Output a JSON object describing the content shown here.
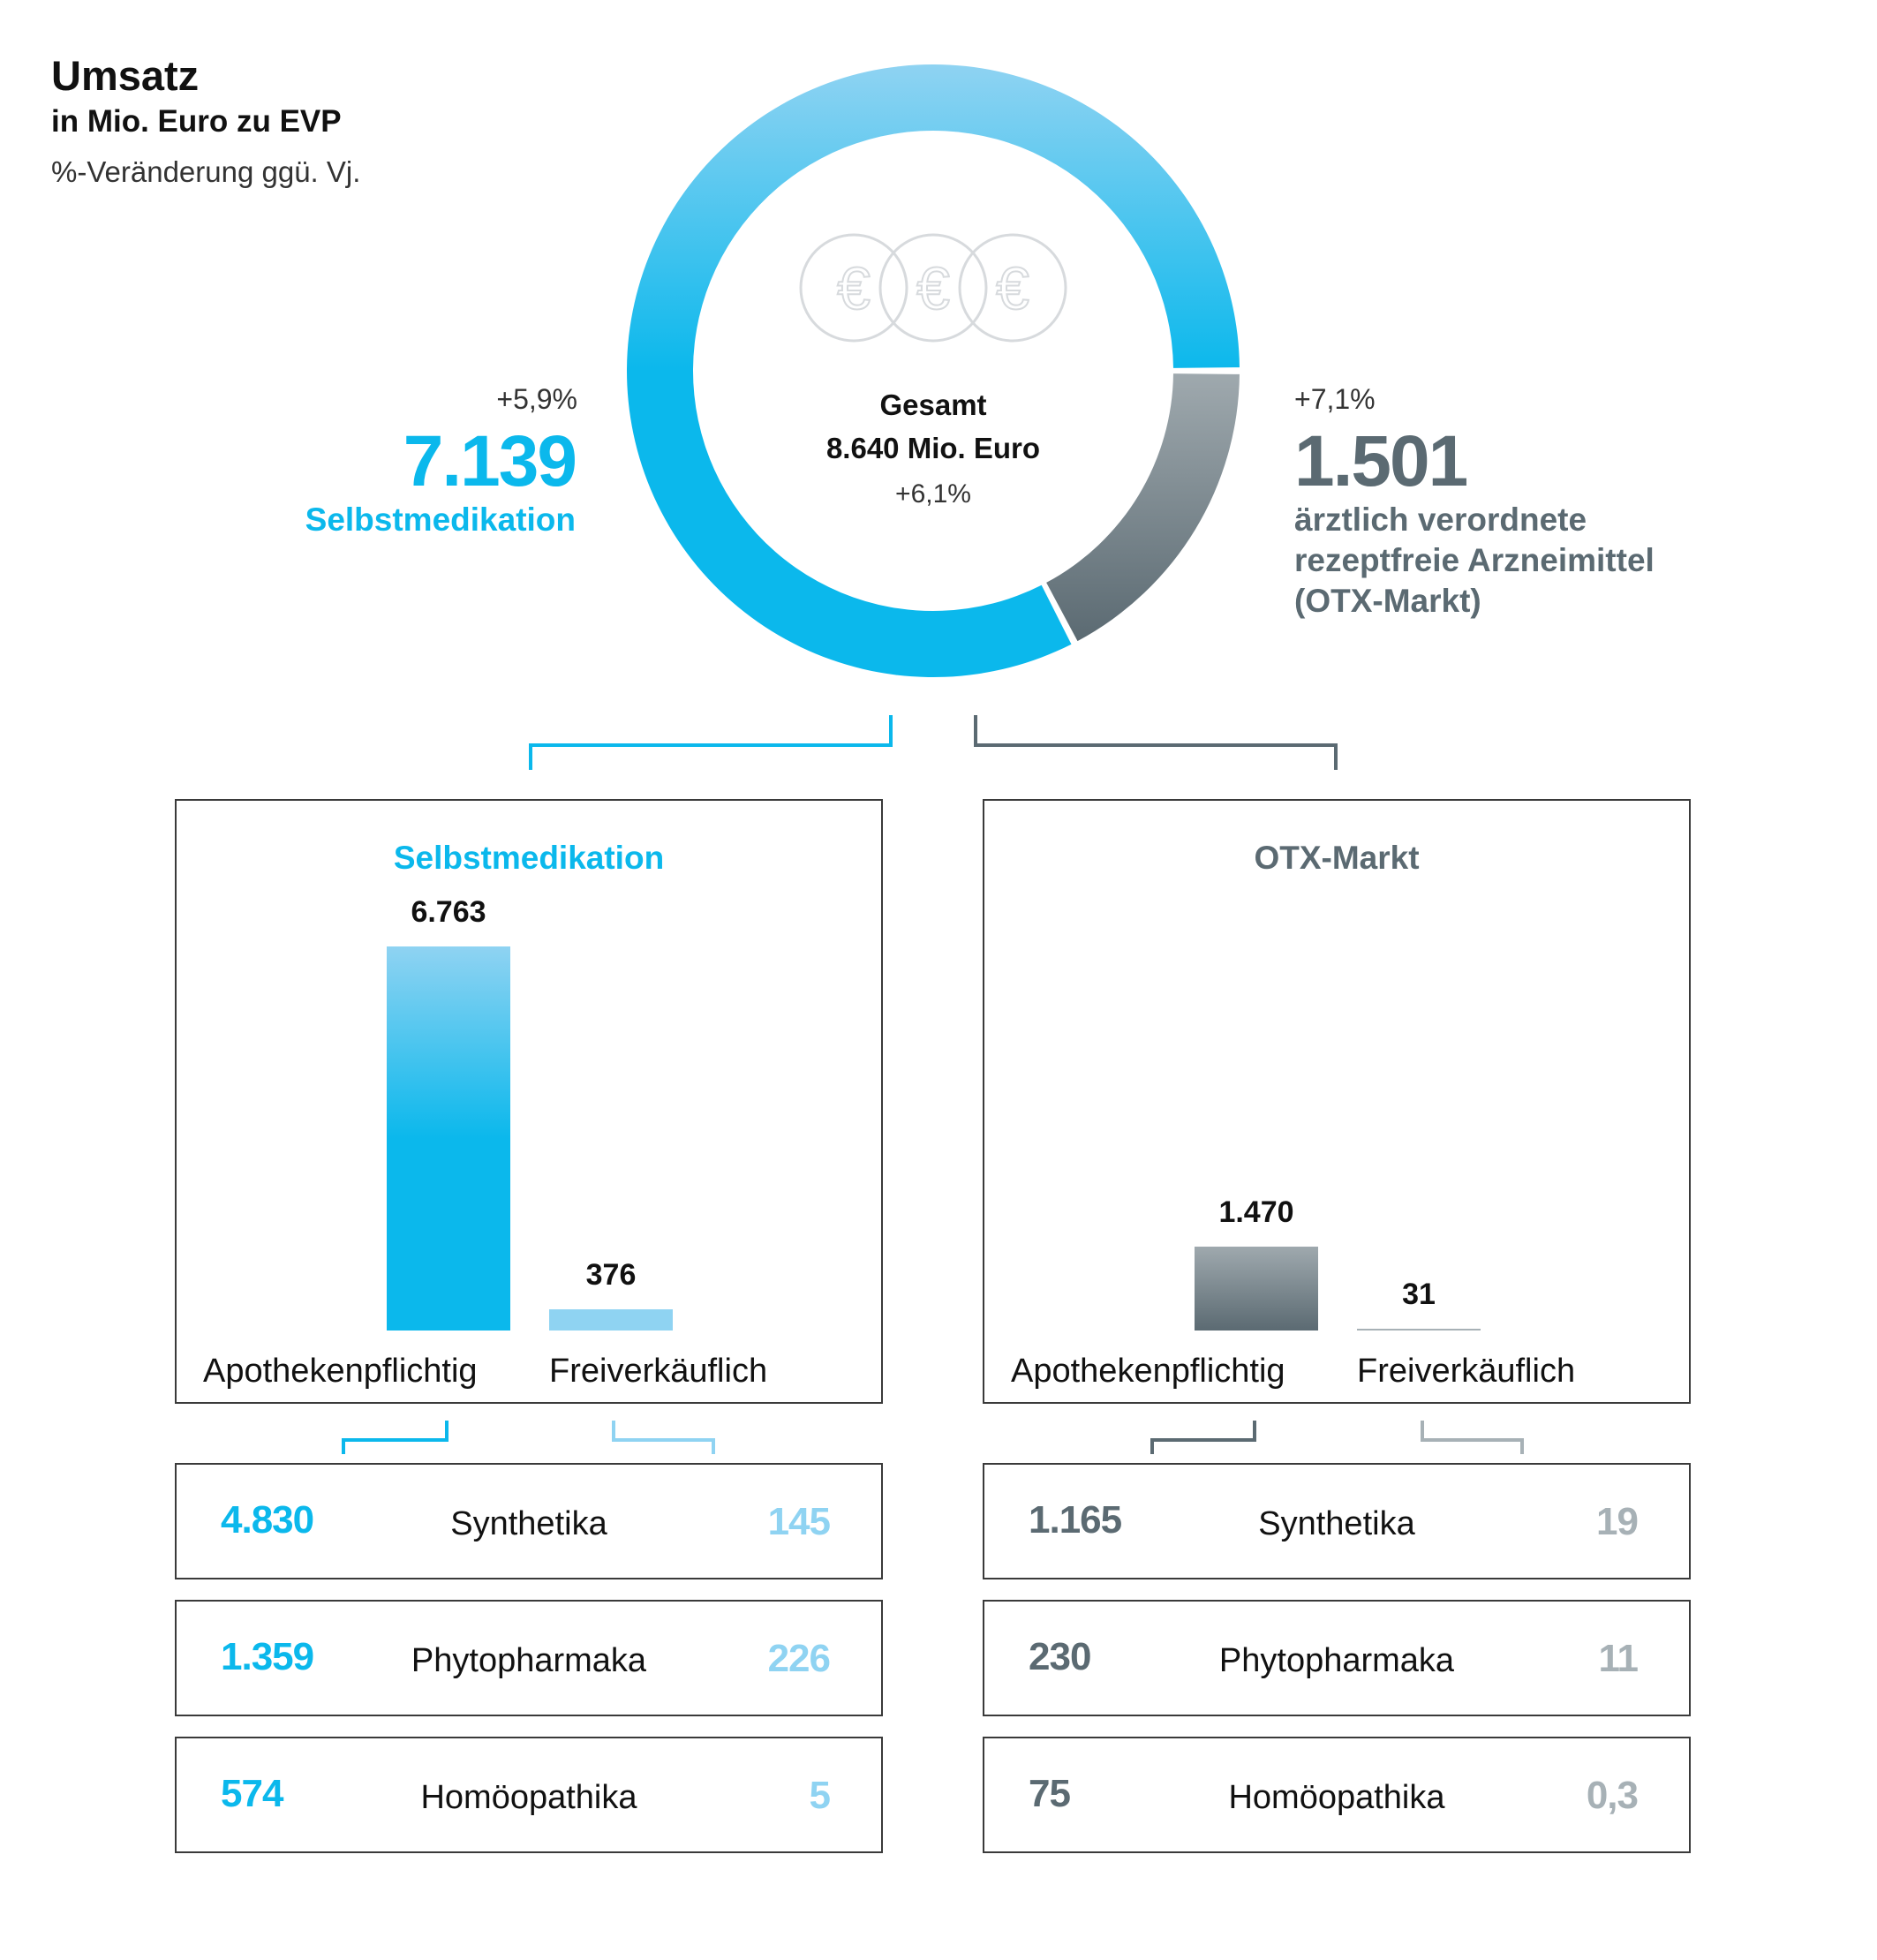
{
  "header": {
    "title": "Umsatz",
    "subtitle": "in Mio. Euro zu EVP",
    "note": "%-Veränderung ggü. Vj."
  },
  "donut": {
    "center_title": "Gesamt",
    "center_value": "8.640 Mio. Euro",
    "center_pct": "+6,1%",
    "icon": "euro-coins-icon"
  },
  "left_segment": {
    "pct": "+5,9%",
    "value": "7.139",
    "label": "Selbstmedikation"
  },
  "right_segment": {
    "pct": "+7,1%",
    "value": "1.501",
    "label_line1": "ärztlich verordnete",
    "label_line2": "rezeptfreie Arzneimittel",
    "label_line3": "(OTX-Markt)"
  },
  "boxes": {
    "left": {
      "title": "Selbstmedikation",
      "bar1_value": "6.763",
      "bar1_label": "Apothekenpflichtig",
      "bar2_value": "376",
      "bar2_label": "Freiverkäuflich"
    },
    "right": {
      "title": "OTX-Markt",
      "bar1_value": "1.470",
      "bar1_label": "Apothekenpflichtig",
      "bar2_value": "31",
      "bar2_label": "Freiverkäuflich"
    }
  },
  "rows": {
    "left": [
      {
        "left": "4.830",
        "label": "Synthetika",
        "right": "145"
      },
      {
        "left": "1.359",
        "label": "Phytopharmaka",
        "right": "226"
      },
      {
        "left": "574",
        "label": "Homöopathika",
        "right": "5"
      }
    ],
    "right": [
      {
        "left": "1.165",
        "label": "Synthetika",
        "right": "19"
      },
      {
        "left": "230",
        "label": "Phytopharmaka",
        "right": "11"
      },
      {
        "left": "75",
        "label": "Homöopathika",
        "right": "0,3"
      }
    ]
  },
  "colors": {
    "blue": "#0bb8ec",
    "light_blue": "#8fd3f2",
    "gray_dark": "#5b6a72",
    "gray_light": "#a7b1b6"
  },
  "chart_data": [
    {
      "type": "pie",
      "title": "Umsatz",
      "categories": [
        "Selbstmedikation",
        "ärztlich verordnete rezeptfreie Arzneimittel (OTX-Markt)"
      ],
      "values": [
        7139,
        1501
      ],
      "total": 8640,
      "change_pct": [
        "+5,9%",
        "+7,1%"
      ],
      "total_change_pct": "+6,1%"
    },
    {
      "type": "bar",
      "title": "Selbstmedikation",
      "categories": [
        "Apothekenpflichtig",
        "Freiverkäuflich"
      ],
      "values": [
        6763,
        376
      ],
      "ylim": [
        0,
        6763
      ]
    },
    {
      "type": "bar",
      "title": "OTX-Markt",
      "categories": [
        "Apothekenpflichtig",
        "Freiverkäuflich"
      ],
      "values": [
        1470,
        31
      ],
      "ylim": [
        0,
        6763
      ]
    },
    {
      "type": "table",
      "title": "Selbstmedikation",
      "categories": [
        "Synthetika",
        "Phytopharmaka",
        "Homöopathika"
      ],
      "series": [
        {
          "name": "Apothekenpflichtig",
          "values": [
            4830,
            1359,
            574
          ]
        },
        {
          "name": "Freiverkäuflich",
          "values": [
            145,
            226,
            5
          ]
        }
      ]
    },
    {
      "type": "table",
      "title": "OTX-Markt",
      "categories": [
        "Synthetika",
        "Phytopharmaka",
        "Homöopathika"
      ],
      "series": [
        {
          "name": "Apothekenpflichtig",
          "values": [
            1165,
            230,
            75
          ]
        },
        {
          "name": "Freiverkäuflich",
          "values": [
            19,
            11,
            0.3
          ]
        }
      ]
    }
  ]
}
